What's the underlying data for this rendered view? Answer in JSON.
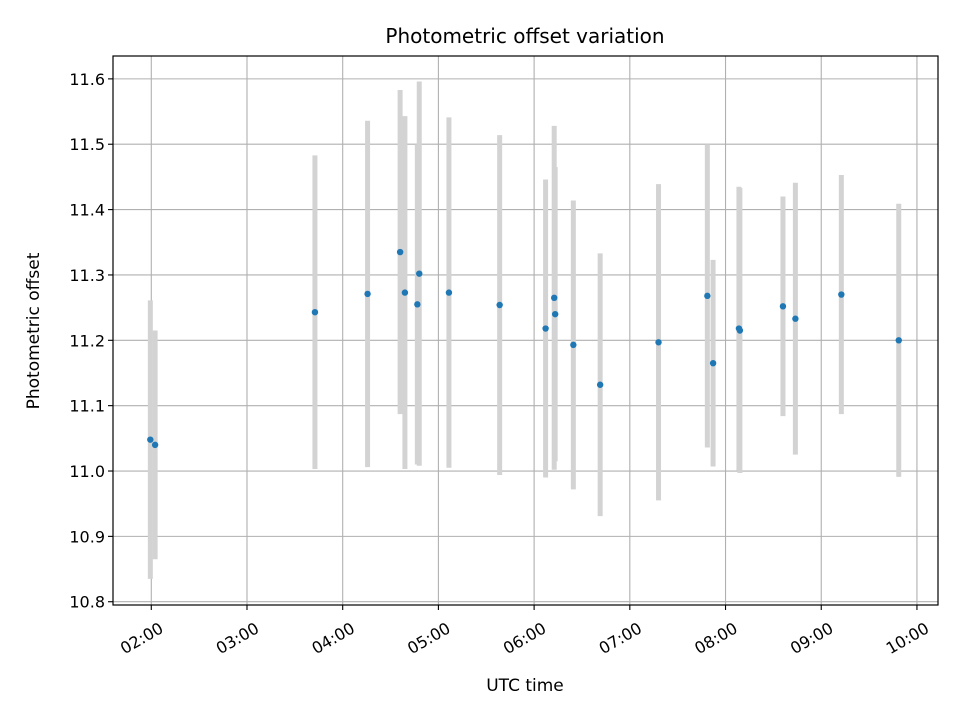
{
  "chart_data": {
    "type": "scatter",
    "title": "Photometric offset variation",
    "xlabel": "UTC time",
    "ylabel": "Photometric offset",
    "x_unit": "UTC hours",
    "xlim": [
      1.6,
      10.22
    ],
    "ylim": [
      10.795,
      11.635
    ],
    "grid": true,
    "xticks": [
      {
        "value": 2,
        "label": "02:00"
      },
      {
        "value": 3,
        "label": "03:00"
      },
      {
        "value": 4,
        "label": "04:00"
      },
      {
        "value": 5,
        "label": "05:00"
      },
      {
        "value": 6,
        "label": "06:00"
      },
      {
        "value": 7,
        "label": "07:00"
      },
      {
        "value": 8,
        "label": "08:00"
      },
      {
        "value": 9,
        "label": "09:00"
      },
      {
        "value": 10,
        "label": "10:00"
      }
    ],
    "yticks": [
      {
        "value": 10.8,
        "label": "10.8"
      },
      {
        "value": 10.9,
        "label": "10.9"
      },
      {
        "value": 11.0,
        "label": "11.0"
      },
      {
        "value": 11.1,
        "label": "11.1"
      },
      {
        "value": 11.2,
        "label": "11.2"
      },
      {
        "value": 11.3,
        "label": "11.3"
      },
      {
        "value": 11.4,
        "label": "11.4"
      },
      {
        "value": 11.5,
        "label": "11.5"
      },
      {
        "value": 11.6,
        "label": "11.6"
      }
    ],
    "colors": {
      "point": "#1f77b4",
      "errorbar": "#d3d3d3",
      "grid": "#b0b0b0"
    },
    "points": [
      {
        "x": 1.99,
        "y": 11.048,
        "err": 0.213
      },
      {
        "x": 2.04,
        "y": 11.04,
        "err": 0.175
      },
      {
        "x": 3.71,
        "y": 11.243,
        "err": 0.24
      },
      {
        "x": 4.26,
        "y": 11.271,
        "err": 0.265
      },
      {
        "x": 4.6,
        "y": 11.335,
        "err": 0.248
      },
      {
        "x": 4.65,
        "y": 11.273,
        "err": 0.27
      },
      {
        "x": 4.78,
        "y": 11.255,
        "err": 0.245
      },
      {
        "x": 4.8,
        "y": 11.302,
        "err": 0.294
      },
      {
        "x": 5.11,
        "y": 11.273,
        "err": 0.268
      },
      {
        "x": 5.64,
        "y": 11.254,
        "err": 0.26
      },
      {
        "x": 6.12,
        "y": 11.218,
        "err": 0.228
      },
      {
        "x": 6.21,
        "y": 11.265,
        "err": 0.263
      },
      {
        "x": 6.22,
        "y": 11.24,
        "err": 0.225
      },
      {
        "x": 6.41,
        "y": 11.193,
        "err": 0.221
      },
      {
        "x": 6.69,
        "y": 11.132,
        "err": 0.201
      },
      {
        "x": 7.3,
        "y": 11.197,
        "err": 0.242
      },
      {
        "x": 7.81,
        "y": 11.268,
        "err": 0.232
      },
      {
        "x": 7.87,
        "y": 11.165,
        "err": 0.158
      },
      {
        "x": 8.14,
        "y": 11.218,
        "err": 0.217
      },
      {
        "x": 8.15,
        "y": 11.215,
        "err": 0.218
      },
      {
        "x": 8.6,
        "y": 11.252,
        "err": 0.168
      },
      {
        "x": 8.73,
        "y": 11.233,
        "err": 0.208
      },
      {
        "x": 9.21,
        "y": 11.27,
        "err": 0.183
      },
      {
        "x": 9.81,
        "y": 11.2,
        "err": 0.209
      }
    ]
  }
}
